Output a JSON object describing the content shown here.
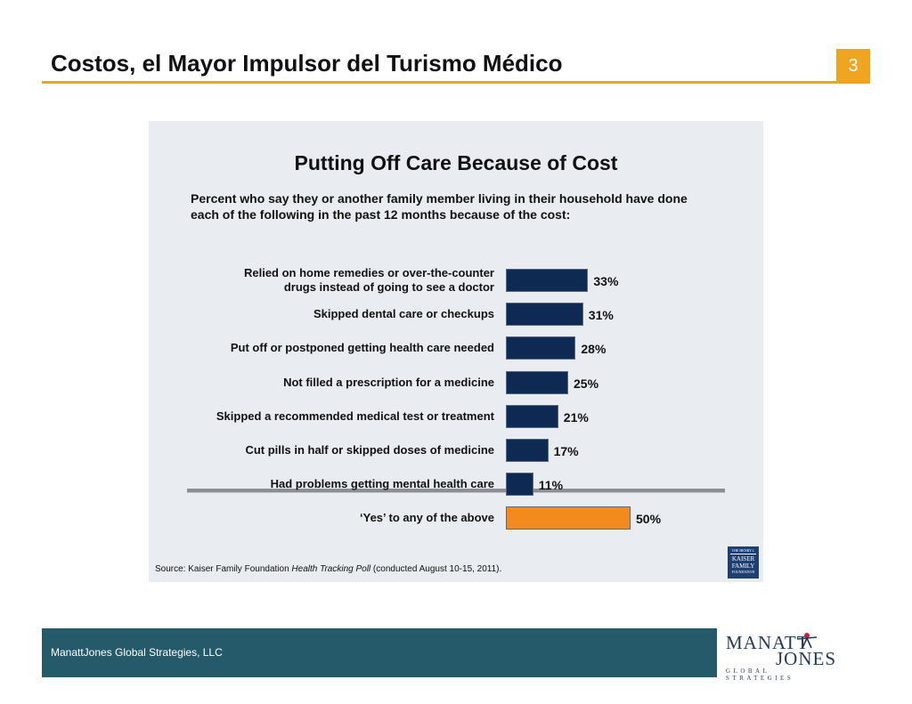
{
  "slide": {
    "title": "Costos, el Mayor Impulsor del Turismo Médico",
    "page_number": "3",
    "accent_color": "#e8a81c"
  },
  "chart_data": {
    "type": "bar",
    "orientation": "horizontal",
    "title": "Putting Off Care Because of Cost",
    "subtitle": "Percent who say they or another family member living in their household have done each of the following in the past 12 months because of the cost:",
    "categories": [
      "Relied on home remedies or over-the-counter drugs instead of going to see a doctor",
      "Skipped dental care or checkups",
      "Put off or postponed getting health care needed",
      "Not filled a prescription for a medicine",
      "Skipped a recommended medical test or treatment",
      "Cut pills in half or skipped doses of medicine",
      "Had problems getting mental health care",
      "‘Yes’ to any of the above"
    ],
    "values": [
      33,
      31,
      28,
      25,
      21,
      17,
      11,
      50
    ],
    "value_labels": [
      "33%",
      "31%",
      "28%",
      "25%",
      "21%",
      "17%",
      "11%",
      "50%"
    ],
    "colors": [
      "#0f2a52",
      "#0f2a52",
      "#0f2a52",
      "#0f2a52",
      "#0f2a52",
      "#0f2a52",
      "#0f2a52",
      "#f28a1e"
    ],
    "xlim": [
      0,
      50
    ],
    "grid": false,
    "source_prefix": "Source: Kaiser Family Foundation ",
    "source_italic": "Health Tracking Poll",
    "source_suffix": " (conducted August 10-15, 2011).",
    "source_logo": {
      "top_line": "THE HENRY J.",
      "line1": "KAISER",
      "line2": "FAMILY",
      "bottom_line": "FOUNDATION"
    }
  },
  "footer": {
    "company": "ManattJones Global Strategies, LLC",
    "color": "#245a6a",
    "logo_line1": "MANATT",
    "logo_line2": "JONES",
    "logo_line3": "GLOBAL STRATEGIES"
  }
}
